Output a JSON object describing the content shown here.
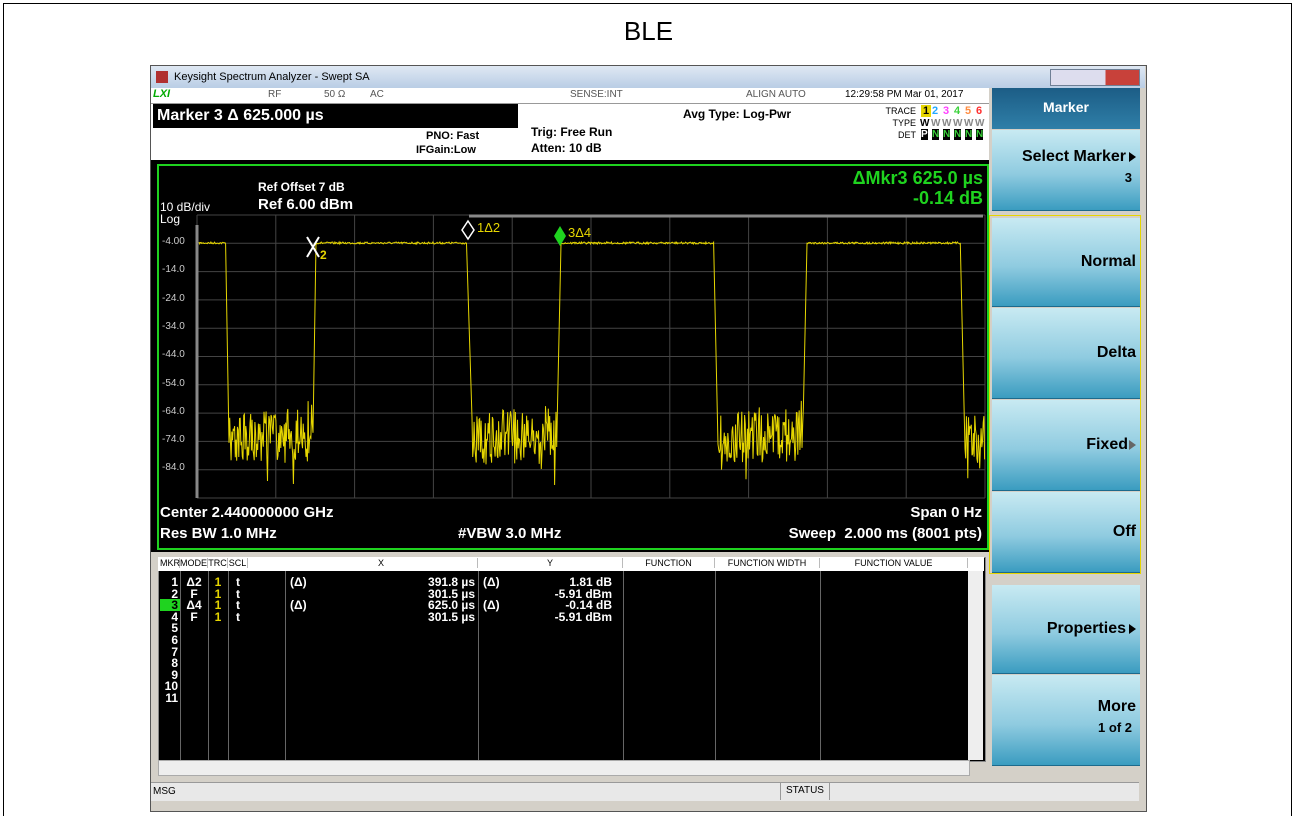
{
  "caption": "BLE",
  "window": {
    "title": "Keysight Spectrum Analyzer - Swept SA"
  },
  "status": {
    "rf": "RF",
    "impedance": "50 Ω",
    "coupling": "AC",
    "sense": "SENSE:INT",
    "align": "ALIGN AUTO",
    "datetime": "12:29:58 PM Mar 01, 2017"
  },
  "header": {
    "marker": "Marker 3 Δ 625.000 µs",
    "pno": "PNO: Fast",
    "ifgain": "IFGain:Low",
    "trig": "Trig: Free Run",
    "atten": "Atten: 10 dB",
    "avg": "Avg Type: Log-Pwr",
    "trace_label": "TRACE",
    "trace": [
      "1",
      "2",
      "3",
      "4",
      "5",
      "6"
    ],
    "type_label": "TYPE",
    "type": [
      "W",
      "W",
      "W",
      "W",
      "W",
      "W"
    ],
    "det_label": "DET",
    "det": [
      "P",
      "N",
      "N",
      "N",
      "N",
      "N"
    ]
  },
  "graph": {
    "ref_offset": "Ref Offset 7 dB",
    "scale": "10 dB/div",
    "ref": "Ref 6.00 dBm",
    "log": "Log",
    "delta_marker": "ΔMkr3 625.0 µs",
    "delta_value": "-0.14 dB",
    "y_labels": [
      "-4.00",
      "-14.0",
      "-24.0",
      "-34.0",
      "-44.0",
      "-54.0",
      "-64.0",
      "-74.0",
      "-84.0"
    ],
    "marker_x": "2",
    "marker_1": "1Δ2",
    "marker_3": "3Δ4",
    "center": "Center 2.440000000 GHz",
    "span": "Span 0 Hz",
    "rbw": "Res BW 1.0 MHz",
    "vbw": "#VBW 3.0 MHz",
    "sweep": "Sweep  2.000 ms (8001 pts)"
  },
  "table": {
    "columns": [
      "MKR",
      "MODE",
      "TRC",
      "SCL",
      "X",
      "Y",
      "FUNCTION",
      "FUNCTION WIDTH",
      "FUNCTION VALUE"
    ],
    "rows": [
      {
        "mkr": "1",
        "mode": "Δ2",
        "trc": "1",
        "scl": "t",
        "x_ref": "(Δ)",
        "x": "391.8 µs",
        "y_ref": "(Δ)",
        "y": "1.81 dB"
      },
      {
        "mkr": "2",
        "mode": "F",
        "trc": "1",
        "scl": "t",
        "x": "301.5 µs",
        "y": "-5.91 dBm"
      },
      {
        "mkr": "3",
        "mode": "Δ4",
        "trc": "1",
        "scl": "t",
        "x_ref": "(Δ)",
        "x": "625.0 µs",
        "y_ref": "(Δ)",
        "y": "-0.14 dB"
      },
      {
        "mkr": "4",
        "mode": "F",
        "trc": "1",
        "scl": "t",
        "x": "301.5 µs",
        "y": "-5.91 dBm"
      },
      {
        "mkr": "5"
      },
      {
        "mkr": "6"
      },
      {
        "mkr": "7"
      },
      {
        "mkr": "8"
      },
      {
        "mkr": "9"
      },
      {
        "mkr": "10"
      },
      {
        "mkr": "11"
      }
    ]
  },
  "footer": {
    "msg": "MSG",
    "status": "STATUS"
  },
  "softkeys": {
    "title": "Marker",
    "keys": [
      {
        "label": "Select Marker",
        "value": "3"
      },
      {
        "label": "Normal"
      },
      {
        "label": "Delta"
      },
      {
        "label": "Fixed"
      },
      {
        "label": "Off"
      },
      {
        "label": "Properties"
      },
      {
        "label": "More",
        "value": "1 of 2"
      }
    ]
  }
}
